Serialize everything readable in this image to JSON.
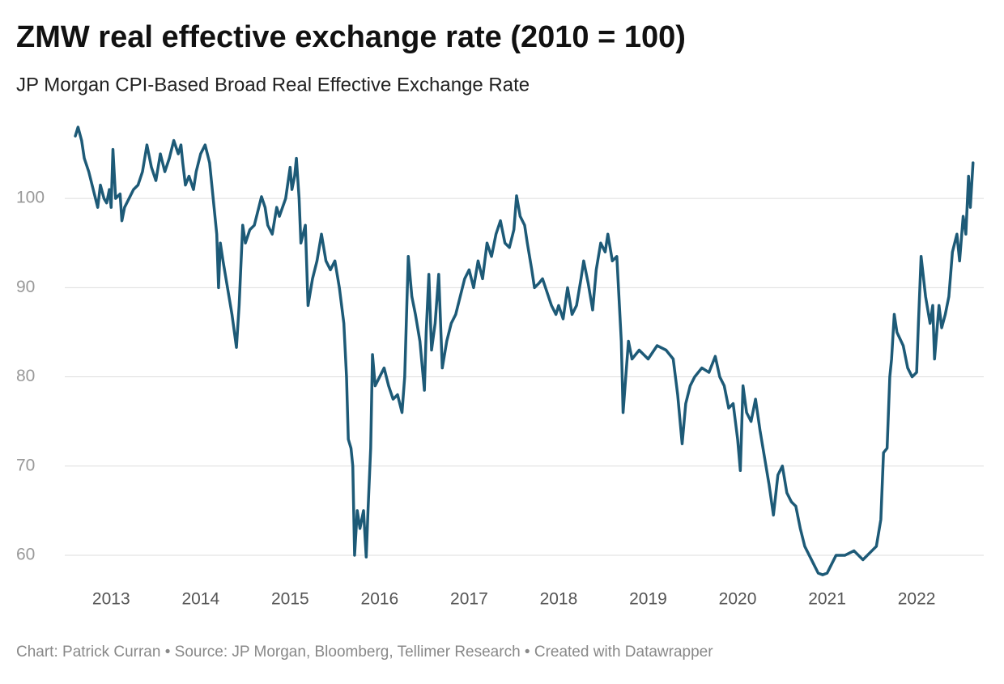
{
  "chart_data": {
    "type": "line",
    "title": "ZMW real effective exchange rate (2010 = 100)",
    "subtitle": "JP Morgan CPI-Based Broad Real Effective Exchange Rate",
    "footer": "Chart: Patrick Curran • Source: JP Morgan, Bloomberg, Tellimer Research • Created with Datawrapper",
    "color": "#1d5a77",
    "grid": true,
    "xlim": [
      2012.5,
      2022.75
    ],
    "xticks": [
      2013,
      2014,
      2015,
      2016,
      2017,
      2018,
      2019,
      2020,
      2021,
      2022
    ],
    "ylim": [
      57,
      109
    ],
    "yticks": [
      60,
      70,
      80,
      90,
      100
    ],
    "x": [
      2012.6,
      2012.63,
      2012.67,
      2012.7,
      2012.75,
      2012.8,
      2012.85,
      2012.88,
      2012.92,
      2012.95,
      2012.98,
      2013.0,
      2013.02,
      2013.05,
      2013.1,
      2013.12,
      2013.15,
      2013.2,
      2013.25,
      2013.3,
      2013.35,
      2013.4,
      2013.45,
      2013.5,
      2013.55,
      2013.6,
      2013.65,
      2013.7,
      2013.75,
      2013.78,
      2013.8,
      2013.83,
      2013.87,
      2013.92,
      2013.95,
      2014.0,
      2014.05,
      2014.1,
      2014.12,
      2014.15,
      2014.18,
      2014.2,
      2014.22,
      2014.25,
      2014.3,
      2014.35,
      2014.4,
      2014.43,
      2014.47,
      2014.5,
      2014.55,
      2014.6,
      2014.65,
      2014.68,
      2014.72,
      2014.75,
      2014.8,
      2014.85,
      2014.88,
      2014.95,
      2015.0,
      2015.02,
      2015.05,
      2015.07,
      2015.1,
      2015.12,
      2015.17,
      2015.2,
      2015.25,
      2015.3,
      2015.35,
      2015.4,
      2015.45,
      2015.5,
      2015.55,
      2015.6,
      2015.63,
      2015.65,
      2015.68,
      2015.7,
      2015.72,
      2015.75,
      2015.78,
      2015.82,
      2015.85,
      2015.87,
      2015.9,
      2015.92,
      2015.95,
      2016.0,
      2016.05,
      2016.1,
      2016.15,
      2016.2,
      2016.25,
      2016.28,
      2016.32,
      2016.36,
      2016.4,
      2016.45,
      2016.5,
      2016.52,
      2016.55,
      2016.58,
      2016.62,
      2016.66,
      2016.7,
      2016.75,
      2016.8,
      2016.85,
      2016.9,
      2016.95,
      2017.0,
      2017.05,
      2017.1,
      2017.15,
      2017.2,
      2017.25,
      2017.3,
      2017.35,
      2017.4,
      2017.45,
      2017.5,
      2017.53,
      2017.57,
      2017.62,
      2017.65,
      2017.7,
      2017.73,
      2017.78,
      2017.82,
      2017.87,
      2017.92,
      2017.97,
      2018.0,
      2018.05,
      2018.1,
      2018.15,
      2018.2,
      2018.25,
      2018.28,
      2018.33,
      2018.38,
      2018.42,
      2018.47,
      2018.52,
      2018.55,
      2018.6,
      2018.65,
      2018.7,
      2018.72,
      2018.75,
      2018.78,
      2018.82,
      2018.9,
      2019.0,
      2019.1,
      2019.2,
      2019.28,
      2019.33,
      2019.38,
      2019.42,
      2019.47,
      2019.52,
      2019.6,
      2019.68,
      2019.75,
      2019.8,
      2019.85,
      2019.9,
      2019.95,
      2020.0,
      2020.03,
      2020.06,
      2020.1,
      2020.15,
      2020.2,
      2020.25,
      2020.3,
      2020.35,
      2020.4,
      2020.45,
      2020.5,
      2020.55,
      2020.6,
      2020.65,
      2020.7,
      2020.75,
      2020.8,
      2020.85,
      2020.9,
      2020.95,
      2021.0,
      2021.05,
      2021.1,
      2021.2,
      2021.3,
      2021.4,
      2021.5,
      2021.55,
      2021.6,
      2021.63,
      2021.67,
      2021.7,
      2021.72,
      2021.75,
      2021.78,
      2021.85,
      2021.9,
      2021.95,
      2022.0,
      2022.02,
      2022.05,
      2022.1,
      2022.15,
      2022.18,
      2022.2,
      2022.25,
      2022.28,
      2022.32,
      2022.36,
      2022.4,
      2022.45,
      2022.48,
      2022.52,
      2022.55,
      2022.58,
      2022.6,
      2022.63
    ],
    "values": [
      107,
      108,
      106.5,
      104.5,
      103,
      101,
      99,
      101.5,
      100,
      99.5,
      101,
      99,
      105.5,
      100,
      100.5,
      97.5,
      99,
      100,
      101,
      101.5,
      103,
      106,
      103.5,
      102,
      105,
      103,
      104.5,
      106.5,
      105,
      106,
      104,
      101.5,
      102.5,
      101,
      103,
      105,
      106,
      104,
      102,
      99,
      96,
      90,
      95,
      93,
      90,
      87,
      83.3,
      88,
      97,
      95,
      96.5,
      97,
      99,
      100.2,
      99,
      97,
      96,
      99,
      98,
      100,
      103.5,
      101,
      102.5,
      104.5,
      100,
      95,
      97,
      88,
      91,
      93,
      96,
      93,
      92,
      93,
      90,
      86,
      80,
      73,
      72,
      70,
      60,
      65,
      63,
      65,
      59.8,
      65,
      72,
      82.5,
      79,
      80,
      81,
      79,
      77.5,
      78,
      76,
      80,
      93.5,
      89,
      87,
      84,
      78.5,
      85,
      91.5,
      83,
      86,
      91.5,
      81,
      84,
      86,
      87,
      89,
      91,
      92,
      90,
      93,
      91,
      95,
      93.5,
      96,
      97.5,
      95,
      94.5,
      96.5,
      100.3,
      98,
      97,
      95,
      92,
      90,
      90.5,
      91,
      89.5,
      88,
      87,
      88,
      86.5,
      90,
      87,
      88,
      91,
      93,
      90.5,
      87.5,
      92,
      95,
      94,
      96,
      93,
      93.5,
      84,
      76,
      80,
      84,
      82,
      83,
      82,
      83.5,
      83,
      82,
      78,
      72.5,
      77,
      79,
      80,
      81,
      80.5,
      82.3,
      80,
      79,
      76.5,
      77,
      73,
      69.5,
      79,
      76,
      75,
      77.5,
      74,
      71,
      68,
      64.5,
      69,
      70,
      67,
      66,
      65.5,
      63,
      61,
      60,
      59,
      58,
      57.8,
      58,
      59,
      60,
      60,
      60.5,
      59.5,
      60.5,
      61,
      64,
      71.5,
      72,
      80,
      82,
      87,
      85,
      83.5,
      81,
      80,
      80.5,
      86,
      93.5,
      89,
      86,
      88,
      82,
      88,
      85.5,
      87,
      89,
      94,
      96,
      93,
      98,
      96,
      102.5,
      99,
      104
    ]
  }
}
